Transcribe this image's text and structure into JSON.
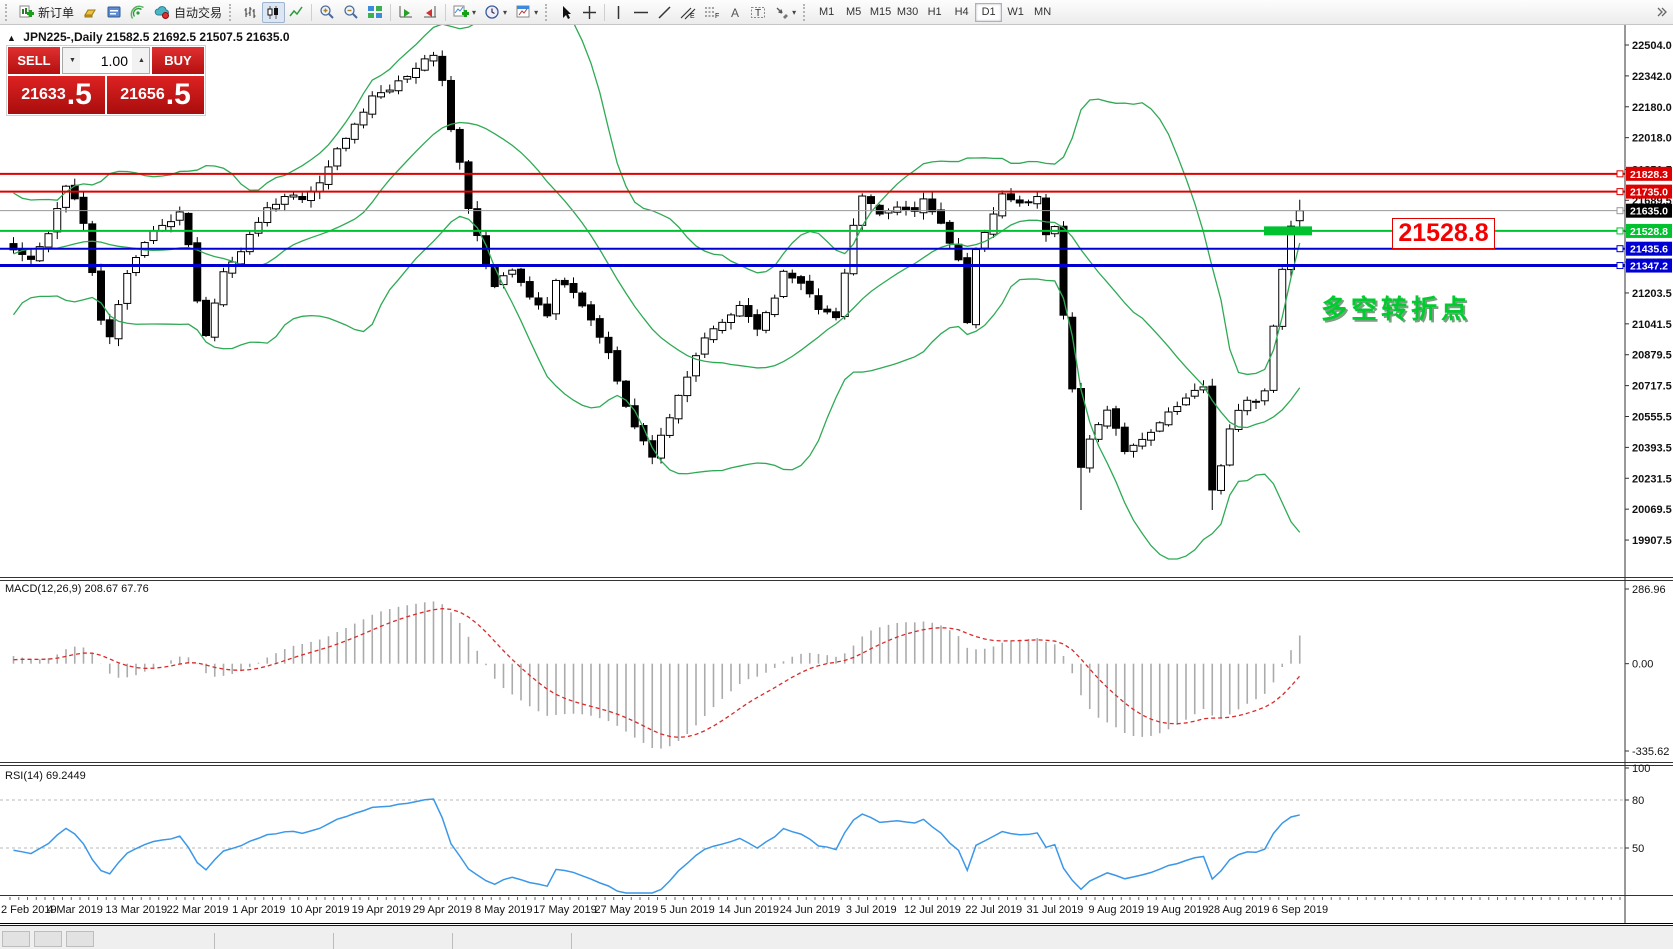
{
  "window": {
    "symbol_title": "JPN225-,Daily",
    "ohlc_line": "21582.5 21692.5 21507.5 21635.0"
  },
  "toolbar": {
    "new_order_label": "新订单",
    "autotrade_label": "自动交易",
    "timeframes": [
      "M1",
      "M5",
      "M15",
      "M30",
      "H1",
      "H4",
      "D1",
      "W1",
      "MN"
    ],
    "active_timeframe": "D1"
  },
  "trade_panel": {
    "sell_label": "SELL",
    "buy_label": "BUY",
    "volume": "1.00",
    "sell_price_int": "21633",
    "sell_price_dec": ".5",
    "buy_price_int": "21656",
    "buy_price_dec": ".5"
  },
  "chart_data": {
    "type": "candlestick",
    "symbol": "JPN225-",
    "timeframe": "Daily",
    "candles": 148,
    "last_candle": {
      "open": 21582.5,
      "high": 21692.5,
      "low": 21507.5,
      "close": 21635.0
    },
    "anchors": [
      [
        -25,
        21500
      ],
      [
        -20,
        20900
      ],
      [
        -15,
        21650
      ],
      [
        -10,
        21150
      ],
      [
        -5,
        21600
      ],
      [
        0,
        21440
      ],
      [
        2,
        21380
      ],
      [
        4,
        21520
      ],
      [
        6,
        21760
      ],
      [
        7,
        21700
      ],
      [
        8,
        21560
      ],
      [
        10,
        21060
      ],
      [
        11,
        20980
      ],
      [
        13,
        21300
      ],
      [
        15,
        21480
      ],
      [
        17,
        21560
      ],
      [
        19,
        21620
      ],
      [
        20,
        21460
      ],
      [
        21,
        21150
      ],
      [
        22,
        20990
      ],
      [
        24,
        21320
      ],
      [
        26,
        21420
      ],
      [
        27,
        21510
      ],
      [
        29,
        21640
      ],
      [
        31,
        21720
      ],
      [
        33,
        21690
      ],
      [
        35,
        21790
      ],
      [
        37,
        21950
      ],
      [
        39,
        22090
      ],
      [
        41,
        22230
      ],
      [
        43,
        22280
      ],
      [
        45,
        22330
      ],
      [
        47,
        22420
      ],
      [
        48,
        22450
      ],
      [
        49,
        22330
      ],
      [
        50,
        22050
      ],
      [
        51,
        21880
      ],
      [
        52,
        21650
      ],
      [
        54,
        21360
      ],
      [
        55,
        21250
      ],
      [
        57,
        21320
      ],
      [
        59,
        21180
      ],
      [
        61,
        21080
      ],
      [
        62,
        21270
      ],
      [
        64,
        21210
      ],
      [
        66,
        21050
      ],
      [
        68,
        20880
      ],
      [
        70,
        20600
      ],
      [
        72,
        20420
      ],
      [
        73,
        20330
      ],
      [
        75,
        20560
      ],
      [
        77,
        20760
      ],
      [
        79,
        20980
      ],
      [
        81,
        21060
      ],
      [
        83,
        21140
      ],
      [
        85,
        21020
      ],
      [
        87,
        21180
      ],
      [
        88,
        21310
      ],
      [
        90,
        21260
      ],
      [
        92,
        21120
      ],
      [
        94,
        21080
      ],
      [
        96,
        21560
      ],
      [
        97,
        21700
      ],
      [
        99,
        21620
      ],
      [
        101,
        21660
      ],
      [
        103,
        21620
      ],
      [
        104,
        21690
      ],
      [
        106,
        21560
      ],
      [
        108,
        21380
      ],
      [
        109,
        21060
      ],
      [
        110,
        21440
      ],
      [
        112,
        21620
      ],
      [
        113,
        21720
      ],
      [
        115,
        21680
      ],
      [
        117,
        21700
      ],
      [
        118,
        21520
      ],
      [
        119,
        21540
      ],
      [
        120,
        21080
      ],
      [
        121,
        20690
      ],
      [
        122,
        20290
      ],
      [
        123,
        20430
      ],
      [
        125,
        20600
      ],
      [
        127,
        20380
      ],
      [
        129,
        20430
      ],
      [
        131,
        20520
      ],
      [
        132,
        20580
      ],
      [
        134,
        20640
      ],
      [
        136,
        20720
      ],
      [
        137,
        20160
      ],
      [
        138,
        20300
      ],
      [
        139,
        20490
      ],
      [
        140,
        20600
      ],
      [
        141,
        20640
      ],
      [
        142,
        20620
      ],
      [
        143,
        20680
      ],
      [
        144,
        21020
      ],
      [
        145,
        21330
      ],
      [
        146,
        21560
      ],
      [
        147,
        21635
      ]
    ],
    "y_ticks": [
      [
        "22504.0",
        22504
      ],
      [
        "22342.0",
        22342
      ],
      [
        "22180.0",
        22180
      ],
      [
        "22018.0",
        22018
      ],
      [
        "21851.5",
        21851.5
      ],
      [
        "21689.5",
        21689.5
      ],
      [
        "21527.5",
        21527.5
      ],
      [
        "21365.5",
        21365.5
      ],
      [
        "21203.5",
        21203.5
      ],
      [
        "21041.5",
        21041.5
      ],
      [
        "20879.5",
        20879.5
      ],
      [
        "20717.5",
        20717.5
      ],
      [
        "20555.5",
        20555.5
      ],
      [
        "20393.5",
        20393.5
      ],
      [
        "20231.5",
        20231.5
      ],
      [
        "20069.5",
        20069.5
      ],
      [
        "19907.5",
        19907.5
      ]
    ],
    "levels": [
      {
        "label": "21828.3",
        "value": 21828.3,
        "color": "#dd0000",
        "width": 2
      },
      {
        "label": "21735.0",
        "value": 21735.0,
        "color": "#dd0000",
        "width": 2
      },
      {
        "label": "21635.0",
        "value": 21635.0,
        "color": "#9a9a9a",
        "width": 1,
        "label_bg": "#000000",
        "current": true
      },
      {
        "label": "21528.8",
        "value": 21528.8,
        "color": "#00c22e",
        "width": 2,
        "highlight": true
      },
      {
        "label": "21435.6",
        "value": 21435.6,
        "color": "#0000d2",
        "width": 2
      },
      {
        "label": "21347.2",
        "value": 21347.2,
        "color": "#0000d2",
        "width": 3
      }
    ],
    "bollinger": {
      "period": 20,
      "deviation": 2,
      "color": "#2faa54"
    },
    "annotations": {
      "price_callout": "21528.8",
      "turning_point": "多空转折点"
    },
    "macd": {
      "label": "MACD(12,26,9) 208.67 67.76",
      "axis": [
        [
          "286.96",
          286.96
        ],
        [
          "0.00",
          0
        ],
        [
          "-335.62",
          -335.62
        ]
      ],
      "hist_color": "#ababab",
      "signal_color": "#d92b2b"
    },
    "rsi": {
      "label": "RSI(14) 69.2449",
      "axis": [
        [
          "100",
          100
        ],
        [
          "80",
          80
        ],
        [
          "50",
          50
        ]
      ],
      "levels": [
        80,
        50
      ],
      "color": "#3b97e8"
    },
    "x_dates": [
      "2 Feb 2019",
      "4 Mar 2019",
      "13 Mar 2019",
      "22 Mar 2019",
      "1 Apr 2019",
      "10 Apr 2019",
      "19 Apr 2019",
      "29 Apr 2019",
      "8 May 2019",
      "17 May 2019",
      "27 May 2019",
      "5 Jun 2019",
      "14 Jun 2019",
      "24 Jun 2019",
      "3 Jul 2019",
      "12 Jul 2019",
      "22 Jul 2019",
      "31 Jul 2019",
      "9 Aug 2019",
      "19 Aug 2019",
      "28 Aug 2019",
      "6 Sep 2019"
    ]
  }
}
